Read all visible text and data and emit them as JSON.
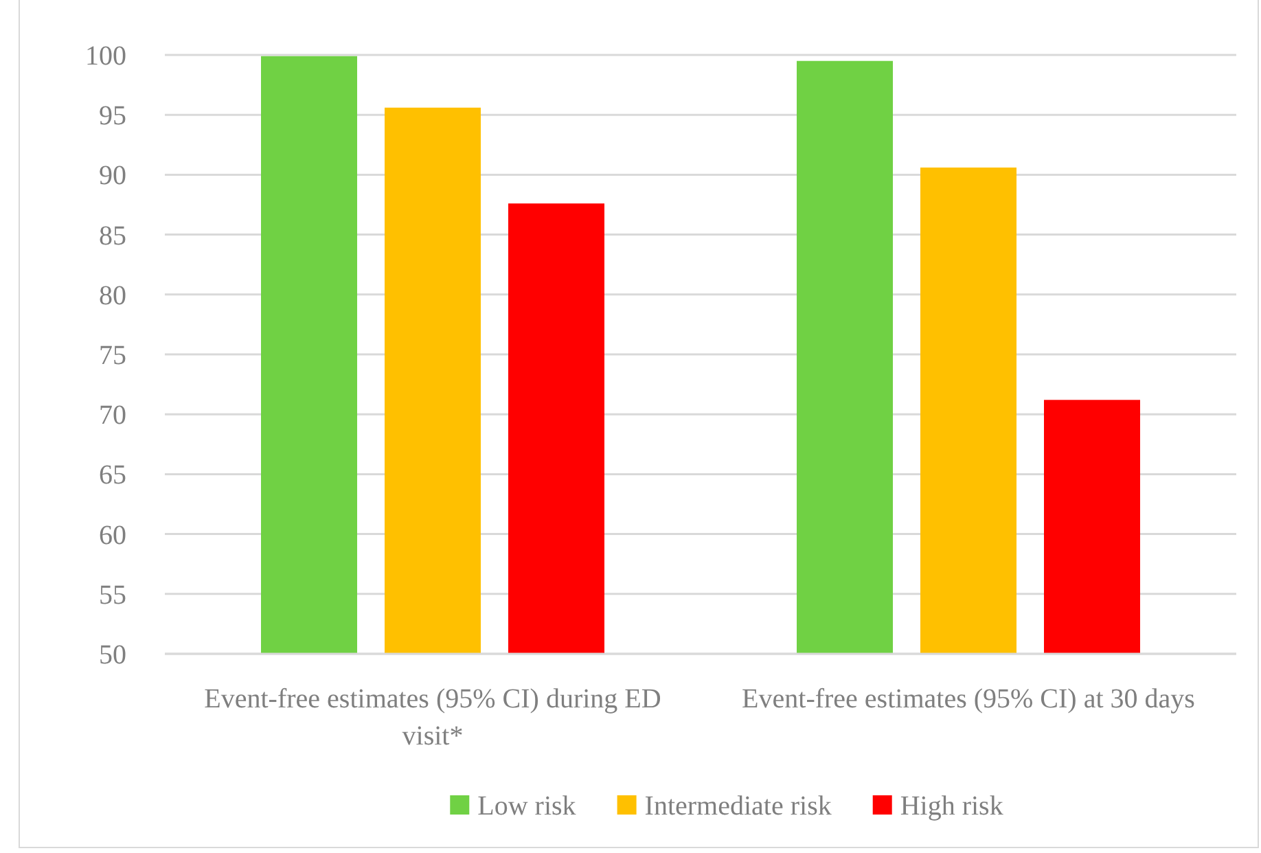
{
  "chart_data": {
    "type": "bar",
    "categories": [
      "Event-free estimates (95% CI) during ED visit*",
      "Event-free estimates (95% CI) at 30 days"
    ],
    "series": [
      {
        "name": "Low risk",
        "color": "#70d144",
        "values": [
          99.9,
          99.5
        ]
      },
      {
        "name": "Intermediate risk",
        "color": "#ffc000",
        "values": [
          95.6,
          90.6
        ]
      },
      {
        "name": "High risk",
        "color": "#ff0000",
        "values": [
          87.6,
          71.2
        ]
      }
    ],
    "ylim": [
      50,
      100
    ],
    "yticks": [
      50,
      55,
      60,
      65,
      70,
      75,
      80,
      85,
      90,
      95,
      100
    ],
    "grid": "y",
    "legend": "bottom"
  }
}
